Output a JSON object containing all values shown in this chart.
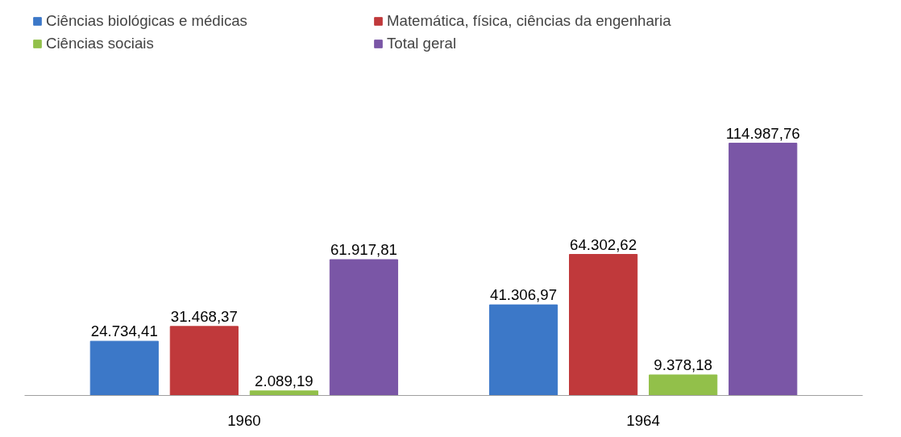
{
  "chart_data": {
    "type": "bar",
    "categories": [
      "1960",
      "1964"
    ],
    "series": [
      {
        "name": "Ciências biológicas e médicas",
        "color": "#3c78c8",
        "values": [
          24734.41,
          41306.97
        ],
        "value_labels": [
          "24.734,41",
          "41.306,97"
        ]
      },
      {
        "name": "Matemática, física, ciências da engenharia",
        "color": "#c0393b",
        "values": [
          31468.37,
          64302.62
        ],
        "value_labels": [
          "31.468,37",
          "64.302,62"
        ]
      },
      {
        "name": "Ciências sociais",
        "color": "#92c04a",
        "values": [
          2089.19,
          9378.18
        ],
        "value_labels": [
          "2.089,19",
          "9.378,18"
        ]
      },
      {
        "name": "Total geral",
        "color": "#7a56a6",
        "values": [
          61917.81,
          114987.76
        ],
        "value_labels": [
          "61.917,81",
          "114.987,76"
        ]
      }
    ],
    "legend": "top",
    "tick_labels": "x"
  }
}
